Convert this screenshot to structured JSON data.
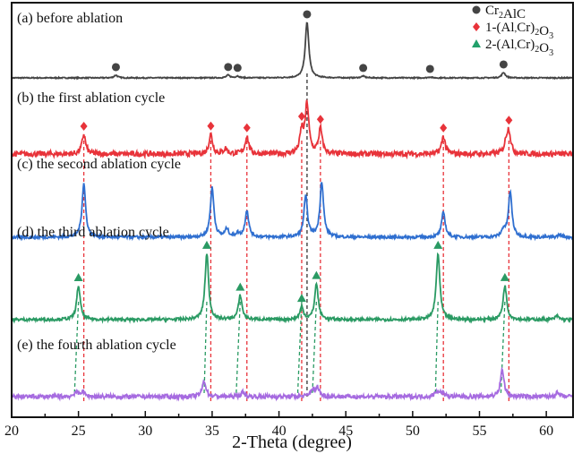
{
  "chart_data": {
    "type": "line",
    "title": "",
    "xlabel": "2-Theta (degree)",
    "ylabel": "",
    "xlim": [
      20,
      62
    ],
    "xticks": [
      20,
      25,
      30,
      35,
      40,
      45,
      50,
      55,
      60
    ],
    "grid": false,
    "legend": {
      "placement": "top-right",
      "entries": [
        {
          "marker": "circle",
          "color": "#444444",
          "label": "Cr2AlC",
          "parts": [
            "Cr",
            "2",
            "AlC"
          ]
        },
        {
          "marker": "diamond",
          "color": "#e8333a",
          "label": "1-(Al,Cr)2O3",
          "parts": [
            "1-(Al",
            ",",
            "Cr)",
            "2",
            "O",
            "3"
          ]
        },
        {
          "marker": "triangle",
          "color": "#22a06b",
          "label": "2-(Al,Cr)2O3",
          "parts": [
            "2-(Al",
            ",",
            "Cr)",
            "2",
            "O",
            "3"
          ]
        }
      ]
    },
    "series": [
      {
        "name": "(a) before ablation",
        "color": "#444444",
        "noise": 0.6,
        "marker": "circle",
        "peaks": [
          [
            27.8,
            3
          ],
          [
            36.2,
            3
          ],
          [
            36.9,
            2
          ],
          [
            42.1,
            62
          ],
          [
            46.3,
            2
          ],
          [
            51.3,
            1
          ],
          [
            56.8,
            6
          ]
        ],
        "markers": [
          27.8,
          36.2,
          36.9,
          42.1,
          46.3,
          51.3,
          56.8
        ]
      },
      {
        "name": "(b) the first ablation cycle",
        "color": "#e8333a",
        "noise": 3.0,
        "marker": "diamond",
        "peaks": [
          [
            25.4,
            22
          ],
          [
            34.9,
            22
          ],
          [
            36.0,
            6
          ],
          [
            37.6,
            20
          ],
          [
            41.7,
            25
          ],
          [
            42.1,
            55
          ],
          [
            43.1,
            28
          ],
          [
            52.3,
            20
          ],
          [
            57.0,
            12
          ],
          [
            57.2,
            24
          ]
        ],
        "markers": [
          25.4,
          34.9,
          37.6,
          41.7,
          43.1,
          52.3,
          57.2
        ]
      },
      {
        "name": "(c) the second ablation cycle",
        "color": "#2f6fd0",
        "noise": 1.6,
        "marker": "none",
        "peaks": [
          [
            25.4,
            60
          ],
          [
            35.0,
            55
          ],
          [
            36.1,
            9
          ],
          [
            36.9,
            4
          ],
          [
            37.6,
            30
          ],
          [
            42.0,
            45
          ],
          [
            43.2,
            62
          ],
          [
            52.3,
            28
          ],
          [
            56.8,
            8
          ],
          [
            57.3,
            50
          ],
          [
            61.0,
            3
          ]
        ],
        "markers": []
      },
      {
        "name": "(d) the third ablation cycle",
        "color": "#2a9a63",
        "noise": 1.6,
        "marker": "triangle",
        "peaks": [
          [
            25.0,
            38
          ],
          [
            34.6,
            74
          ],
          [
            37.1,
            27
          ],
          [
            41.7,
            14
          ],
          [
            42.8,
            40
          ],
          [
            51.9,
            74
          ],
          [
            56.9,
            38
          ],
          [
            60.8,
            4
          ]
        ],
        "markers": [
          25.0,
          34.6,
          37.1,
          41.7,
          42.8,
          51.9,
          56.9
        ]
      },
      {
        "name": "(e) the fourth ablation cycle",
        "color": "#a66be0",
        "noise": 2.4,
        "marker": "none",
        "peaks": [
          [
            24.8,
            5
          ],
          [
            25.3,
            6
          ],
          [
            34.4,
            18
          ],
          [
            37.3,
            5
          ],
          [
            42.5,
            8
          ],
          [
            42.9,
            10
          ],
          [
            51.8,
            6
          ],
          [
            52.2,
            5
          ],
          [
            56.7,
            30
          ],
          [
            60.8,
            4
          ]
        ],
        "markers": []
      }
    ],
    "reference_lines": {
      "black": [
        42.1
      ],
      "red": [
        25.4,
        34.9,
        37.6,
        41.7,
        43.1,
        52.3,
        57.2
      ],
      "green": [
        [
          25.0,
          24.7
        ],
        [
          34.6,
          34.4
        ],
        [
          37.1,
          36.8
        ],
        [
          41.7,
          41.4
        ],
        [
          42.8,
          42.5
        ],
        [
          51.9,
          51.7
        ],
        [
          56.9,
          56.6
        ]
      ]
    }
  }
}
